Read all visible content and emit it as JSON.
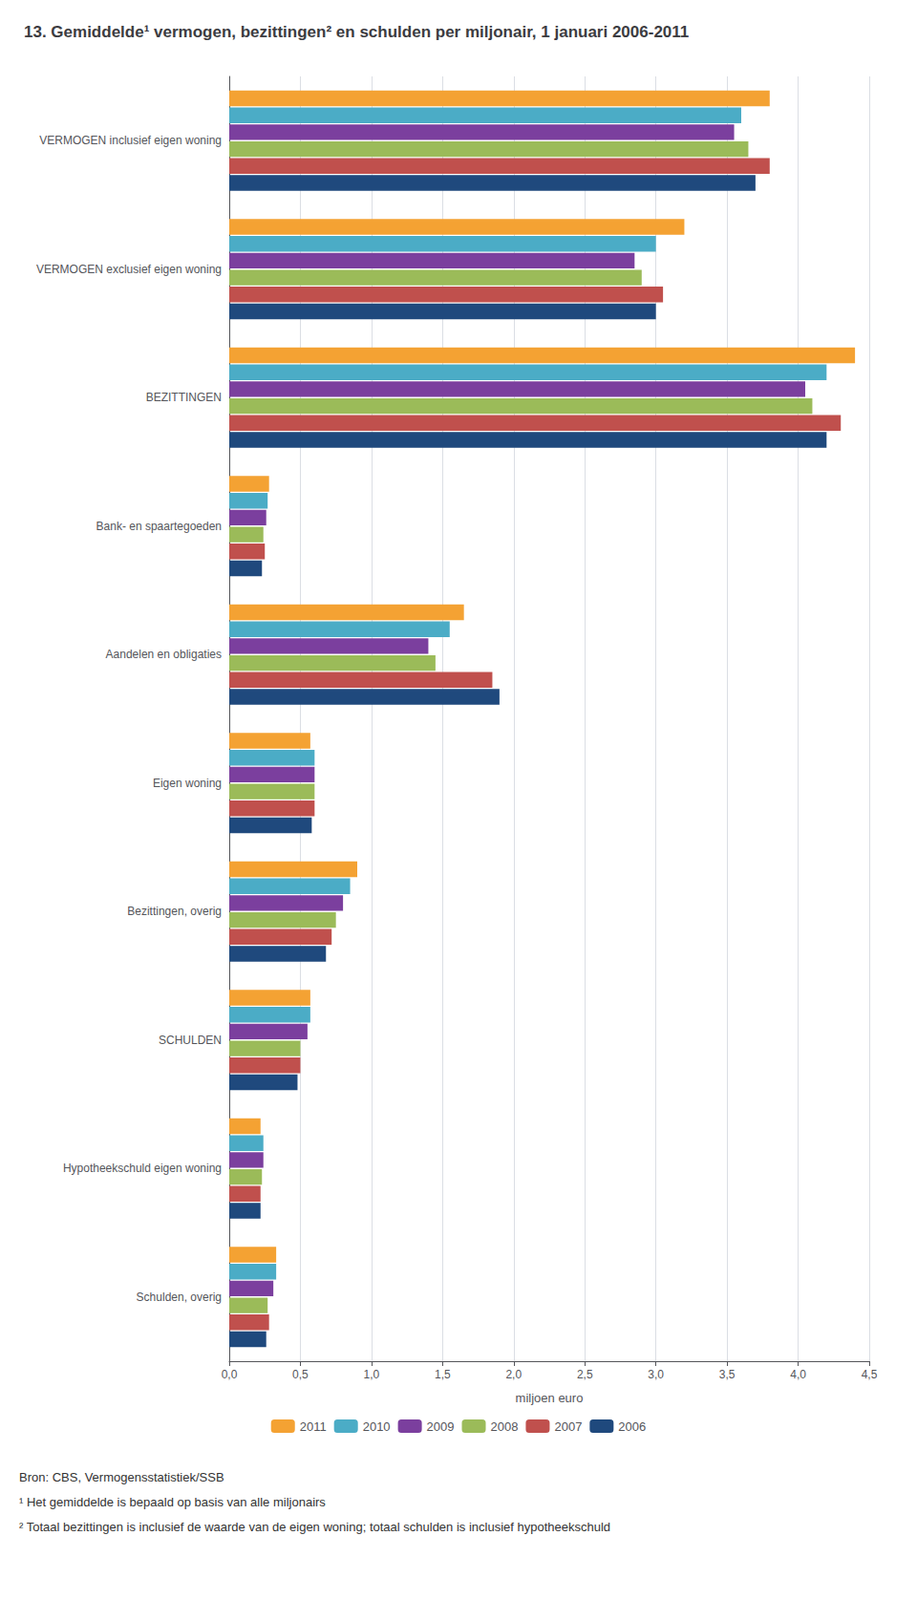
{
  "chart_data": {
    "type": "bar",
    "orientation": "horizontal",
    "title": "13. Gemiddelde¹ vermogen, bezittingen² en schulden per miljonair, 1 januari 2006-2011",
    "xlabel": "miljoen euro",
    "categories": [
      "VERMOGEN inclusief eigen woning",
      "VERMOGEN exclusief eigen woning",
      "BEZITTINGEN",
      "Bank- en spaartegoeden",
      "Aandelen en obligaties",
      "Eigen woning",
      "Bezittingen, overig",
      "SCHULDEN",
      "Hypotheekschuld eigen woning",
      "Schulden, overig"
    ],
    "series": [
      {
        "name": "2011",
        "color": "#F4A233",
        "values": [
          3.8,
          3.2,
          4.4,
          0.28,
          1.65,
          0.57,
          0.9,
          0.57,
          0.22,
          0.33
        ]
      },
      {
        "name": "2010",
        "color": "#4BACC6",
        "values": [
          3.6,
          3.0,
          4.2,
          0.27,
          1.55,
          0.6,
          0.85,
          0.57,
          0.24,
          0.33
        ]
      },
      {
        "name": "2009",
        "color": "#7B3F9E",
        "values": [
          3.55,
          2.85,
          4.05,
          0.26,
          1.4,
          0.6,
          0.8,
          0.55,
          0.24,
          0.31
        ]
      },
      {
        "name": "2008",
        "color": "#9BBB59",
        "values": [
          3.65,
          2.9,
          4.1,
          0.24,
          1.45,
          0.6,
          0.75,
          0.5,
          0.23,
          0.27
        ]
      },
      {
        "name": "2007",
        "color": "#C0504D",
        "values": [
          3.8,
          3.05,
          4.3,
          0.25,
          1.85,
          0.6,
          0.72,
          0.5,
          0.22,
          0.28
        ]
      },
      {
        "name": "2006",
        "color": "#1F497D",
        "values": [
          3.7,
          3.0,
          4.2,
          0.23,
          1.9,
          0.58,
          0.68,
          0.48,
          0.22,
          0.26
        ]
      }
    ],
    "xlim": [
      0,
      4.5
    ],
    "xticks": [
      {
        "value": 0.0,
        "label": "0,0"
      },
      {
        "value": 0.5,
        "label": "0,5"
      },
      {
        "value": 1.0,
        "label": "1,0"
      },
      {
        "value": 1.5,
        "label": "1,5"
      },
      {
        "value": 2.0,
        "label": "2,0"
      },
      {
        "value": 2.5,
        "label": "2,5"
      },
      {
        "value": 3.0,
        "label": "3,0"
      },
      {
        "value": 3.5,
        "label": "3,5"
      },
      {
        "value": 4.0,
        "label": "4,0"
      },
      {
        "value": 4.5,
        "label": "4,5"
      }
    ],
    "grid": true,
    "legend": "bottom",
    "annotations": [
      "Bron: CBS, Vermogensstatistiek/SSB",
      "¹ Het gemiddelde is bepaald op basis van alle miljonairs",
      "² Totaal bezittingen is inclusief de waarde van de eigen woning; totaal schulden is inclusief hypotheekschuld"
    ]
  }
}
